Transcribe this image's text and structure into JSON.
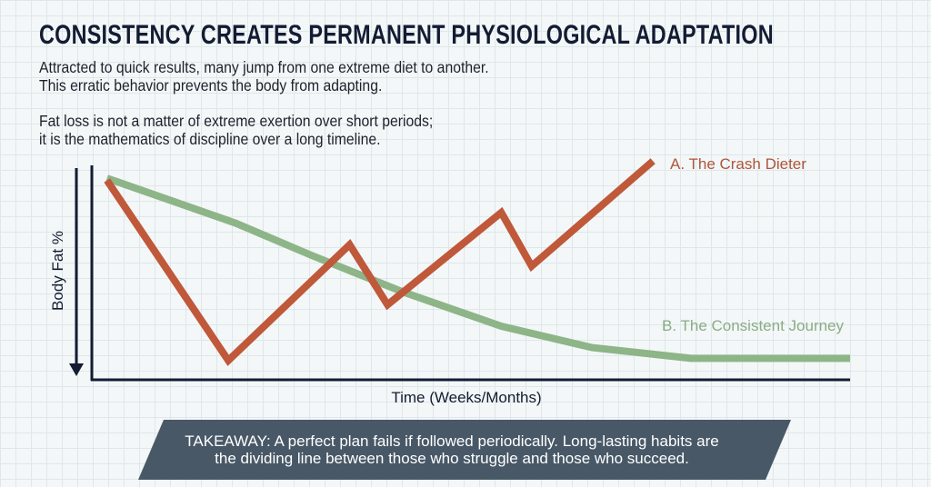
{
  "title": "CONSISTENCY CREATES PERMANENT PHYSIOLOGICAL ADAPTATION",
  "paragraphs": [
    "Attracted to quick results, many jump from one extreme diet to another.\nThis erratic behavior prevents the body from adapting.",
    "Fat loss is not a matter of extreme exertion over short periods;\nit is the mathematics of discipline over a long timeline."
  ],
  "takeaway": "TAKEAWAY: A perfect plan fails if followed periodically. Long-lasting habits are\nthe dividing line between those who struggle and those who succeed.",
  "colors": {
    "crash": "#c0583a",
    "consistent": "#8db588",
    "axis": "#131c33",
    "banner": "#485867"
  },
  "chart_data": {
    "type": "line",
    "xlabel": "Time (Weeks/Months)",
    "ylabel": "Body Fat %",
    "xlim": [
      0,
      100
    ],
    "ylim": [
      0,
      100
    ],
    "grid": true,
    "legend": "inline-labels",
    "series": [
      {
        "name": "A. The Crash Dieter",
        "color": "#c0583a",
        "x": [
          2,
          18,
          34,
          39,
          54,
          58,
          74
        ],
        "y": [
          93,
          9,
          63,
          35,
          78,
          53,
          102
        ]
      },
      {
        "name": "B. The Consistent Journey",
        "color": "#8db588",
        "x": [
          2,
          19,
          29,
          41,
          54,
          66,
          79,
          100
        ],
        "y": [
          94,
          73,
          58,
          41,
          25,
          15,
          10,
          10
        ]
      }
    ]
  }
}
